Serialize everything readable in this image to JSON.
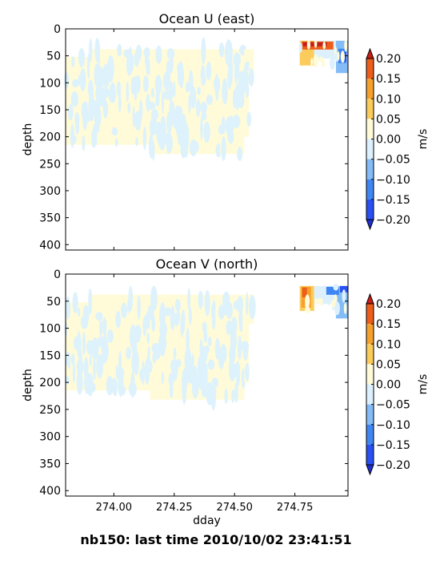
{
  "figure_title": "nb150: last time 2010/10/02 23:41:51",
  "colorbar": {
    "label": "m/s",
    "levels": [
      -0.2,
      -0.15,
      -0.1,
      -0.05,
      0.0,
      0.05,
      0.1,
      0.15,
      0.2
    ],
    "tick_labels": [
      "0.20",
      "0.15",
      "0.10",
      "0.05",
      "0.00",
      "−0.05",
      "−0.10",
      "−0.15",
      "−0.20"
    ],
    "colors": [
      "#2a50f4",
      "#3f86f3",
      "#84bcf7",
      "#dcf1fd",
      "#fffbd8",
      "#fbcc5c",
      "#f6a02d",
      "#ec5e1a"
    ],
    "over_color": "#c81e18",
    "under_color": "#1e2ed0"
  },
  "chart_data": [
    {
      "type": "heatmap",
      "title": "Ocean U (east)",
      "xlabel": "",
      "ylabel": "depth",
      "xlim": [
        273.8,
        274.97
      ],
      "ylim": [
        410,
        0
      ],
      "xticks": [
        "274.00",
        "274.25",
        "274.50",
        "274.75"
      ],
      "xtick_values": [
        274.0,
        274.25,
        274.5,
        274.75
      ],
      "yticks": [
        "0",
        "50",
        "100",
        "150",
        "200",
        "250",
        "300",
        "350",
        "400"
      ],
      "ytick_values": [
        0,
        50,
        100,
        150,
        200,
        250,
        300,
        350,
        400
      ],
      "show_xtick_labels": false
    },
    {
      "type": "heatmap",
      "title": "Ocean V (north)",
      "xlabel": "dday",
      "ylabel": "depth",
      "xlim": [
        273.8,
        274.97
      ],
      "ylim": [
        410,
        0
      ],
      "xticks": [
        "274.00",
        "274.25",
        "274.50",
        "274.75"
      ],
      "xtick_values": [
        274.0,
        274.25,
        274.5,
        274.75
      ],
      "yticks": [
        "0",
        "50",
        "100",
        "150",
        "200",
        "250",
        "300",
        "350",
        "400"
      ],
      "ytick_values": [
        0,
        50,
        100,
        150,
        200,
        250,
        300,
        350,
        400
      ],
      "show_xtick_labels": true
    }
  ]
}
